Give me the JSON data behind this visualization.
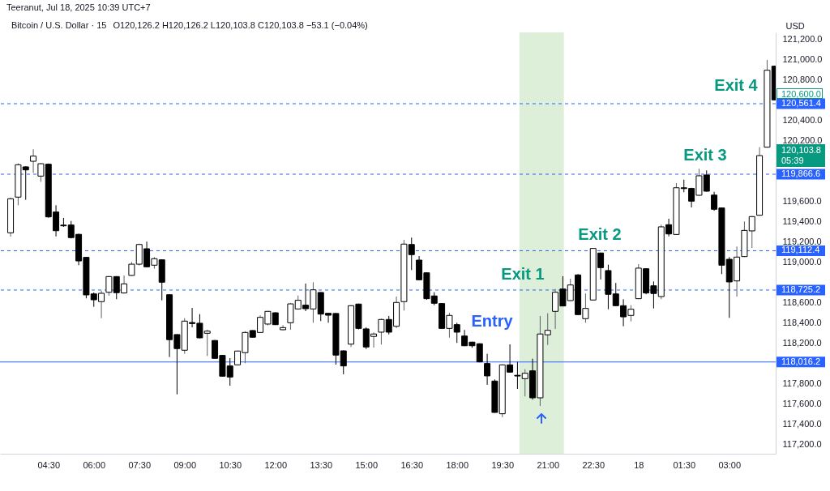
{
  "chart_data": {
    "type": "candlestick",
    "title": "Bitcoin / U.S. Dollar · 15",
    "subtitle": "O120,126.2 H120,126.2 L120,103.8 C120,103.8 −53.1 (−0.04%)",
    "ylabel": "USD",
    "x": [
      "2025-07-17T03:15",
      "2025-07-17T03:30",
      "2025-07-17T03:45",
      "2025-07-17T04:00",
      "2025-07-17T04:15",
      "2025-07-17T04:30",
      "2025-07-17T04:45",
      "2025-07-17T05:00",
      "2025-07-17T05:15",
      "2025-07-17T05:30",
      "2025-07-17T05:45",
      "2025-07-17T06:00",
      "2025-07-17T06:15",
      "2025-07-17T06:30",
      "2025-07-17T06:45",
      "2025-07-17T07:00",
      "2025-07-17T07:15",
      "2025-07-17T07:30",
      "2025-07-17T07:45",
      "2025-07-17T08:00",
      "2025-07-17T08:15",
      "2025-07-17T08:30",
      "2025-07-17T08:45",
      "2025-07-17T09:00",
      "2025-07-17T09:15",
      "2025-07-17T09:30",
      "2025-07-17T09:45",
      "2025-07-17T10:00",
      "2025-07-17T10:15",
      "2025-07-17T10:30",
      "2025-07-17T10:45",
      "2025-07-17T11:00",
      "2025-07-17T11:15",
      "2025-07-17T11:30",
      "2025-07-17T11:45",
      "2025-07-17T12:00",
      "2025-07-17T12:15",
      "2025-07-17T12:30",
      "2025-07-17T12:45",
      "2025-07-17T13:00",
      "2025-07-17T13:15",
      "2025-07-17T13:30",
      "2025-07-17T13:45",
      "2025-07-17T14:00",
      "2025-07-17T14:15",
      "2025-07-17T14:30",
      "2025-07-17T14:45",
      "2025-07-17T15:00",
      "2025-07-17T15:15",
      "2025-07-17T15:30",
      "2025-07-17T15:45",
      "2025-07-17T16:00",
      "2025-07-17T16:15",
      "2025-07-17T16:30",
      "2025-07-17T16:45",
      "2025-07-17T17:00",
      "2025-07-17T17:15",
      "2025-07-17T17:30",
      "2025-07-17T17:45",
      "2025-07-17T18:00",
      "2025-07-17T18:15",
      "2025-07-17T18:30",
      "2025-07-17T18:45",
      "2025-07-17T19:00",
      "2025-07-17T19:15",
      "2025-07-17T19:30",
      "2025-07-17T19:45",
      "2025-07-17T20:00",
      "2025-07-17T20:15",
      "2025-07-17T20:30",
      "2025-07-17T20:45",
      "2025-07-17T21:00",
      "2025-07-17T21:15",
      "2025-07-17T21:30",
      "2025-07-17T21:45",
      "2025-07-17T22:00",
      "2025-07-17T22:15",
      "2025-07-17T22:30",
      "2025-07-17T22:45",
      "2025-07-17T23:00",
      "2025-07-17T23:15",
      "2025-07-17T23:30",
      "2025-07-17T23:45",
      "2025-07-18T00:00",
      "2025-07-18T00:15",
      "2025-07-18T00:30",
      "2025-07-18T00:45",
      "2025-07-18T01:00",
      "2025-07-18T01:15",
      "2025-07-18T01:30",
      "2025-07-18T01:45",
      "2025-07-18T02:00",
      "2025-07-18T02:15",
      "2025-07-18T02:30",
      "2025-07-18T02:45",
      "2025-07-18T03:00",
      "2025-07-18T03:15",
      "2025-07-18T03:30",
      "2025-07-18T03:45",
      "2025-07-18T04:00",
      "2025-07-18T04:15",
      "2025-07-18T04:30"
    ],
    "ohlc": [
      [
        119289,
        119635,
        119252,
        119625
      ],
      [
        119641,
        119973,
        119561,
        119960
      ],
      [
        119939,
        119945,
        119614,
        119909
      ],
      [
        119994,
        120112,
        119880,
        120045
      ],
      [
        119848,
        119975,
        119792,
        119970
      ],
      [
        119965,
        119972,
        119438,
        119446
      ],
      [
        119494,
        119561,
        119254,
        119310
      ],
      [
        119365,
        119436,
        119348,
        119358
      ],
      [
        119366,
        119406,
        119234,
        119242
      ],
      [
        119274,
        119280,
        118970,
        119012
      ],
      [
        119047,
        119050,
        118643,
        118677
      ],
      [
        118687,
        118701,
        118560,
        118629
      ],
      [
        118611,
        118719,
        118448,
        118693
      ],
      [
        118703,
        118862,
        118669,
        118858
      ],
      [
        118858,
        118862,
        118635,
        118699
      ],
      [
        118696,
        118869,
        118690,
        118786
      ],
      [
        118869,
        119002,
        118865,
        118980
      ],
      [
        118980,
        119182,
        118967,
        119174
      ],
      [
        119132,
        119202,
        118950,
        118954
      ],
      [
        118970,
        119050,
        118935,
        119034
      ],
      [
        119023,
        119028,
        118624,
        118802
      ],
      [
        118679,
        118683,
        118065,
        118236
      ],
      [
        118286,
        118290,
        117697,
        118148
      ],
      [
        118132,
        118448,
        118097,
        118419
      ],
      [
        118405,
        118549,
        118358,
        118395
      ],
      [
        118398,
        118488,
        118250,
        118254
      ],
      [
        118299,
        118334,
        118076,
        118320
      ],
      [
        118228,
        118232,
        118048,
        118052
      ],
      [
        118081,
        118085,
        117872,
        117876
      ],
      [
        117977,
        118054,
        117783,
        117868
      ],
      [
        117988,
        118128,
        117982,
        118124
      ],
      [
        118108,
        118320,
        118004,
        118307
      ],
      [
        118326,
        118330,
        118256,
        118260
      ],
      [
        118307,
        118475,
        118303,
        118456
      ],
      [
        118390,
        118519,
        118376,
        118515
      ],
      [
        118501,
        118505,
        118380,
        118384
      ],
      [
        118334,
        118379,
        118330,
        118355
      ],
      [
        118403,
        118593,
        118334,
        118589
      ],
      [
        118539,
        118671,
        118535,
        118624
      ],
      [
        118576,
        118789,
        118517,
        118541
      ],
      [
        118539,
        118802,
        118403,
        118727
      ],
      [
        118701,
        118705,
        118419,
        118488
      ],
      [
        118496,
        118500,
        118403,
        118477
      ],
      [
        118494,
        118498,
        117990,
        118084
      ],
      [
        118126,
        118130,
        117895,
        117977
      ],
      [
        118192,
        118575,
        118164,
        118571
      ],
      [
        118587,
        118591,
        118337,
        118347
      ],
      [
        118342,
        118358,
        118144,
        118164
      ],
      [
        118268,
        118307,
        118158,
        118292
      ],
      [
        118310,
        118443,
        118188,
        118435
      ],
      [
        118435,
        118470,
        118288,
        118310
      ],
      [
        118368,
        118661,
        118350,
        118603
      ],
      [
        118611,
        119220,
        118523,
        119178
      ],
      [
        119174,
        119242,
        118922,
        119074
      ],
      [
        119020,
        119060,
        118822,
        118826
      ],
      [
        118895,
        118899,
        118629,
        118640
      ],
      [
        118667,
        118703,
        118576,
        118595
      ],
      [
        118592,
        118596,
        118343,
        118347
      ],
      [
        118347,
        118501,
        118256,
        118475
      ],
      [
        118384,
        118403,
        118204,
        118310
      ],
      [
        118272,
        118332,
        118172,
        118176
      ],
      [
        118212,
        118216,
        118156,
        118176
      ],
      [
        118196,
        118200,
        118013,
        118017
      ],
      [
        118001,
        118097,
        117791,
        117879
      ],
      [
        117828,
        117844,
        117515,
        117519
      ],
      [
        117506,
        117992,
        117472,
        117988
      ],
      [
        117988,
        118190,
        117911,
        117916
      ],
      [
        117885,
        118017,
        117751,
        117878
      ],
      [
        117852,
        117945,
        117677,
        117905
      ],
      [
        117929,
        118049,
        117645,
        117663
      ],
      [
        117663,
        118470,
        117583,
        118292
      ],
      [
        118284,
        118496,
        118184,
        118328
      ],
      [
        118515,
        118735,
        118342,
        118703
      ],
      [
        118735,
        118861,
        118564,
        118568
      ],
      [
        118621,
        118837,
        118617,
        118775
      ],
      [
        118874,
        118882,
        118479,
        118483
      ],
      [
        118443,
        118691,
        118403,
        118544
      ],
      [
        118627,
        119139,
        118623,
        119135
      ],
      [
        119090,
        119094,
        118829,
        118946
      ],
      [
        118917,
        118975,
        118536,
        118683
      ],
      [
        118687,
        118795,
        118567,
        118571
      ],
      [
        118571,
        118635,
        118368,
        118461
      ],
      [
        118475,
        118576,
        118416,
        118536
      ],
      [
        118640,
        118980,
        118636,
        118941
      ],
      [
        118935,
        118939,
        118683,
        118696
      ],
      [
        118767,
        118810,
        118544,
        118691
      ],
      [
        118661,
        119369,
        118635,
        119348
      ],
      [
        119369,
        119428,
        119254,
        119278
      ],
      [
        119273,
        119779,
        119269,
        119733
      ],
      [
        119733,
        119813,
        119689,
        119725
      ],
      [
        119726,
        119733,
        119539,
        119601
      ],
      [
        119659,
        119920,
        119655,
        119851
      ],
      [
        119859,
        119904,
        119695,
        119699
      ],
      [
        119661,
        119693,
        119507,
        119521
      ],
      [
        119534,
        119538,
        118882,
        118970
      ],
      [
        119028,
        119050,
        118451,
        118805
      ],
      [
        118815,
        119154,
        118661,
        119050
      ],
      [
        119055,
        119401,
        119051,
        119313
      ],
      [
        119308,
        119453,
        119140,
        119449
      ],
      [
        119462,
        120133,
        119458,
        120050
      ],
      [
        120133,
        120992,
        120129,
        120891
      ],
      [
        120931,
        120935,
        120595,
        120599
      ]
    ],
    "xlim": [
      "2025-07-17T02:54",
      "2025-07-18T04:32"
    ],
    "xticks": [
      {
        "value": "2025-07-17T04:30",
        "label": "04:30"
      },
      {
        "value": "2025-07-17T06:00",
        "label": "06:00"
      },
      {
        "value": "2025-07-17T07:30",
        "label": "07:30"
      },
      {
        "value": "2025-07-17T09:00",
        "label": "09:00"
      },
      {
        "value": "2025-07-17T10:30",
        "label": "10:30"
      },
      {
        "value": "2025-07-17T12:00",
        "label": "12:00"
      },
      {
        "value": "2025-07-17T13:30",
        "label": "13:30"
      },
      {
        "value": "2025-07-17T15:00",
        "label": "15:00"
      },
      {
        "value": "2025-07-17T16:30",
        "label": "16:30"
      },
      {
        "value": "2025-07-17T18:00",
        "label": "18:00"
      },
      {
        "value": "2025-07-17T19:30",
        "label": "19:30"
      },
      {
        "value": "2025-07-17T21:00",
        "label": "21:00"
      },
      {
        "value": "2025-07-17T22:30",
        "label": "22:30"
      },
      {
        "value": "2025-07-18T00:00",
        "label": "18"
      },
      {
        "value": "2025-07-18T01:30",
        "label": "01:30"
      },
      {
        "value": "2025-07-18T03:00",
        "label": "03:00"
      }
    ],
    "ylim": [
      117112,
      121264
    ],
    "yticks": [
      {
        "value": 117200,
        "label": "117,200.0"
      },
      {
        "value": 117400,
        "label": "117,400.0"
      },
      {
        "value": 117600,
        "label": "117,600.0"
      },
      {
        "value": 117800,
        "label": "117,800.0"
      },
      {
        "value": 118200,
        "label": "118,200.0"
      },
      {
        "value": 118400,
        "label": "118,400.0"
      },
      {
        "value": 118600,
        "label": "118,600.0"
      },
      {
        "value": 119000,
        "label": "119,000.0"
      },
      {
        "value": 119200,
        "label": "119,200.0"
      },
      {
        "value": 119400,
        "label": "119,400.0"
      },
      {
        "value": 119600,
        "label": "119,600.0"
      },
      {
        "value": 120200,
        "label": "120,200.0"
      },
      {
        "value": 120400,
        "label": "120,400.0"
      },
      {
        "value": 120800,
        "label": "120,800.0"
      },
      {
        "value": 121000,
        "label": "121,000.0"
      },
      {
        "value": 121200,
        "label": "121,200.0"
      }
    ],
    "ref_lines": [
      {
        "axis": "y",
        "value": 120561.4,
        "label": "120,561.4",
        "color": "#2962ff",
        "line_style": "dashed"
      },
      {
        "axis": "y",
        "value": 119866.6,
        "label": "119,866.6",
        "color": "#2962ff",
        "line_style": "dashed"
      },
      {
        "axis": "y",
        "value": 119112.4,
        "label": "119,112.4",
        "color": "#2962ff",
        "line_style": "dashed"
      },
      {
        "axis": "y",
        "value": 118725.2,
        "label": "118,725.2",
        "color": "#2962ff",
        "line_style": "dashed"
      },
      {
        "axis": "y",
        "value": 118016.2,
        "label": "118,016.2",
        "color": "#2962ff",
        "line_style": "solid"
      }
    ],
    "bands": [
      {
        "axis": "x",
        "from": "2025-07-17T20:04",
        "to": "2025-07-17T21:32",
        "color": "#d9ecd5"
      }
    ],
    "annotations": [
      "Teeranut, Jul 18, 2025 10:39 UTC+7",
      "Entry",
      "Exit 1",
      "Exit 2",
      "Exit 3",
      "Exit 4",
      "120,600.0",
      "120,103.8\n05:39"
    ]
  }
}
